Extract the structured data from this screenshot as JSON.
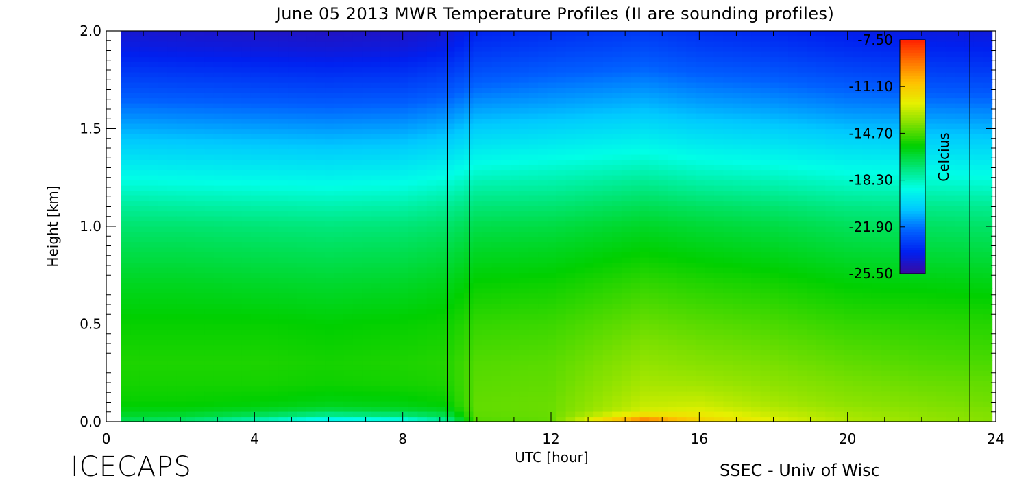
{
  "chart_data": {
    "type": "heatmap",
    "title": "June 05 2013 MWR Temperature Profiles (II are sounding profiles)",
    "xlabel": "UTC [hour]",
    "ylabel": "Height [km]",
    "xlim": [
      0,
      24
    ],
    "ylim": [
      0,
      2.0
    ],
    "x_ticks": [
      0,
      4,
      8,
      12,
      16,
      20,
      24
    ],
    "x_tick_labels": [
      "0",
      "4",
      "8",
      "12",
      "16",
      "20",
      "24"
    ],
    "y_ticks": [
      0.0,
      0.5,
      1.0,
      1.5,
      2.0
    ],
    "y_tick_labels": [
      "0.0",
      "0.5",
      "1.0",
      "1.5",
      "2.0"
    ],
    "data_x_range": [
      0.4,
      23.9
    ],
    "sounding_profiles_utc": [
      9.2,
      9.8,
      23.3
    ],
    "colorbar": {
      "label": "Celcius",
      "range": [
        -25.5,
        -7.5
      ],
      "tick_values": [
        -7.5,
        -11.1,
        -14.7,
        -18.3,
        -21.9,
        -25.5
      ],
      "tick_labels": [
        "-7.50",
        "-11.10",
        "-14.70",
        "-18.30",
        "-21.90",
        "-25.50"
      ],
      "colormap": [
        "#3a0aa0",
        "#0020f0",
        "#0060ff",
        "#00c8ff",
        "#00ffe6",
        "#00e676",
        "#00d000",
        "#7ce000",
        "#e6f000",
        "#ffc000",
        "#ff7000",
        "#ff2000"
      ]
    },
    "profile_height_km": [
      0.0,
      0.05,
      0.1,
      0.2,
      0.3,
      0.5,
      0.7,
      0.9,
      1.0,
      1.1,
      1.2,
      1.3,
      1.4,
      1.5,
      1.6,
      1.7,
      1.8,
      1.9,
      2.0
    ],
    "profiles": [
      {
        "utc": 0.5,
        "temps_c": [
          -17.0,
          -16.0,
          -15.6,
          -15.4,
          -15.3,
          -15.6,
          -16.1,
          -16.8,
          -17.2,
          -17.8,
          -18.6,
          -19.4,
          -20.2,
          -21.0,
          -21.8,
          -22.6,
          -23.3,
          -24.0,
          -24.5
        ]
      },
      {
        "utc": 2.0,
        "temps_c": [
          -17.3,
          -16.0,
          -15.6,
          -15.4,
          -15.3,
          -15.6,
          -16.1,
          -16.8,
          -17.2,
          -17.9,
          -18.7,
          -19.5,
          -20.3,
          -21.1,
          -21.9,
          -22.7,
          -23.4,
          -24.1,
          -24.6
        ]
      },
      {
        "utc": 4.0,
        "temps_c": [
          -18.5,
          -16.3,
          -15.7,
          -15.4,
          -15.3,
          -15.6,
          -16.2,
          -16.9,
          -17.3,
          -18.0,
          -18.8,
          -19.6,
          -20.4,
          -21.2,
          -22.0,
          -22.8,
          -23.5,
          -24.2,
          -24.7
        ]
      },
      {
        "utc": 6.0,
        "temps_c": [
          -20.0,
          -16.8,
          -15.9,
          -15.5,
          -15.4,
          -15.7,
          -16.3,
          -17.0,
          -17.4,
          -18.1,
          -18.9,
          -19.7,
          -20.5,
          -21.3,
          -22.1,
          -22.9,
          -23.6,
          -24.3,
          -24.8
        ]
      },
      {
        "utc": 8.0,
        "temps_c": [
          -19.5,
          -16.5,
          -15.8,
          -15.4,
          -15.3,
          -15.6,
          -16.2,
          -16.9,
          -17.3,
          -18.0,
          -18.8,
          -19.6,
          -20.4,
          -21.2,
          -22.0,
          -22.8,
          -23.5,
          -24.2,
          -24.7
        ]
      },
      {
        "utc": 9.2,
        "temps_c": [
          -18.0,
          -16.2,
          -15.6,
          -15.3,
          -15.2,
          -15.5,
          -16.0,
          -16.7,
          -17.1,
          -17.7,
          -18.5,
          -19.3,
          -20.1,
          -20.9,
          -21.7,
          -22.5,
          -23.2,
          -23.9,
          -24.4
        ]
      },
      {
        "utc": 10.0,
        "temps_c": [
          -14.6,
          -14.4,
          -14.4,
          -14.5,
          -14.6,
          -15.0,
          -15.6,
          -16.3,
          -16.7,
          -17.3,
          -18.0,
          -18.8,
          -19.6,
          -20.4,
          -21.2,
          -22.0,
          -22.7,
          -23.3,
          -23.8
        ]
      },
      {
        "utc": 12.0,
        "temps_c": [
          -14.4,
          -14.3,
          -14.3,
          -14.4,
          -14.5,
          -14.9,
          -15.5,
          -16.2,
          -16.6,
          -17.2,
          -17.9,
          -18.6,
          -19.4,
          -20.2,
          -21.0,
          -21.7,
          -22.4,
          -23.0,
          -23.5
        ]
      },
      {
        "utc": 14.5,
        "temps_c": [
          -8.8,
          -12.6,
          -13.0,
          -13.4,
          -13.7,
          -14.3,
          -15.0,
          -15.8,
          -16.2,
          -16.8,
          -17.5,
          -18.3,
          -19.1,
          -19.9,
          -20.7,
          -21.4,
          -22.1,
          -22.7,
          -23.2
        ]
      },
      {
        "utc": 16.0,
        "temps_c": [
          -11.2,
          -12.4,
          -12.9,
          -13.5,
          -13.9,
          -14.5,
          -15.2,
          -16.0,
          -16.4,
          -17.0,
          -17.8,
          -18.6,
          -19.4,
          -20.2,
          -21.0,
          -21.7,
          -22.4,
          -23.0,
          -23.5
        ]
      },
      {
        "utc": 18.0,
        "temps_c": [
          -12.4,
          -13.0,
          -13.4,
          -13.8,
          -14.1,
          -14.7,
          -15.4,
          -16.2,
          -16.6,
          -17.2,
          -18.0,
          -18.8,
          -19.6,
          -20.4,
          -21.2,
          -21.9,
          -22.6,
          -23.2,
          -23.7
        ]
      },
      {
        "utc": 20.0,
        "temps_c": [
          -13.2,
          -13.5,
          -13.8,
          -14.1,
          -14.4,
          -15.0,
          -15.7,
          -16.5,
          -16.9,
          -17.5,
          -18.3,
          -19.1,
          -19.9,
          -20.7,
          -21.5,
          -22.2,
          -22.9,
          -23.5,
          -24.0
        ]
      },
      {
        "utc": 22.0,
        "temps_c": [
          -13.6,
          -13.8,
          -14.0,
          -14.3,
          -14.6,
          -15.1,
          -15.8,
          -16.6,
          -17.0,
          -17.6,
          -18.4,
          -19.2,
          -20.0,
          -20.8,
          -21.6,
          -22.4,
          -23.1,
          -23.7,
          -24.2
        ]
      },
      {
        "utc": 23.9,
        "temps_c": [
          -13.9,
          -14.0,
          -14.2,
          -14.4,
          -14.7,
          -15.2,
          -15.9,
          -16.7,
          -17.1,
          -17.7,
          -18.5,
          -19.3,
          -20.1,
          -20.9,
          -21.7,
          -22.5,
          -23.2,
          -23.8,
          -24.3
        ]
      }
    ]
  },
  "footer": {
    "left_brand": "ICECAPS",
    "right_credit": "SSEC - Univ of Wisc"
  }
}
